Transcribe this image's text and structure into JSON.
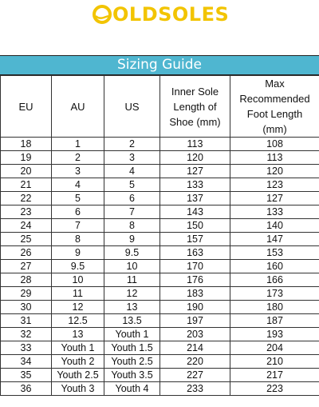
{
  "brand": {
    "name": "OLDSOLES",
    "color": "#f2c400",
    "icon": "shoe-logo-icon"
  },
  "title_bar": {
    "label": "Sizing Guide",
    "color": "#4fb6d0"
  },
  "table": {
    "headers": {
      "eu": "EU",
      "au": "AU",
      "us": "US",
      "inner_sole": [
        "Inner Sole",
        "Length of",
        "Shoe (mm)"
      ],
      "max_foot": [
        "Max",
        "Recommended",
        "Foot Length",
        "(mm)"
      ]
    },
    "rows": [
      [
        "18",
        "1",
        "2",
        "113",
        "108"
      ],
      [
        "19",
        "2",
        "3",
        "120",
        "113"
      ],
      [
        "20",
        "3",
        "4",
        "127",
        "120"
      ],
      [
        "21",
        "4",
        "5",
        "133",
        "123"
      ],
      [
        "22",
        "5",
        "6",
        "137",
        "127"
      ],
      [
        "23",
        "6",
        "7",
        "143",
        "133"
      ],
      [
        "24",
        "7",
        "8",
        "150",
        "140"
      ],
      [
        "25",
        "8",
        "9",
        "157",
        "147"
      ],
      [
        "26",
        "9",
        "9.5",
        "163",
        "153"
      ],
      [
        "27",
        "9.5",
        "10",
        "170",
        "160"
      ],
      [
        "28",
        "10",
        "11",
        "176",
        "166"
      ],
      [
        "29",
        "11",
        "12",
        "183",
        "173"
      ],
      [
        "30",
        "12",
        "13",
        "190",
        "180"
      ],
      [
        "31",
        "12.5",
        "13.5",
        "197",
        "187"
      ],
      [
        "32",
        "13",
        "Youth 1",
        "203",
        "193"
      ],
      [
        "33",
        "Youth 1",
        "Youth 1.5",
        "214",
        "204"
      ],
      [
        "34",
        "Youth 2",
        "Youth 2.5",
        "220",
        "210"
      ],
      [
        "35",
        "Youth 2.5",
        "Youth 3.5",
        "227",
        "217"
      ],
      [
        "36",
        "Youth 3",
        "Youth 4",
        "233",
        "223"
      ]
    ]
  }
}
